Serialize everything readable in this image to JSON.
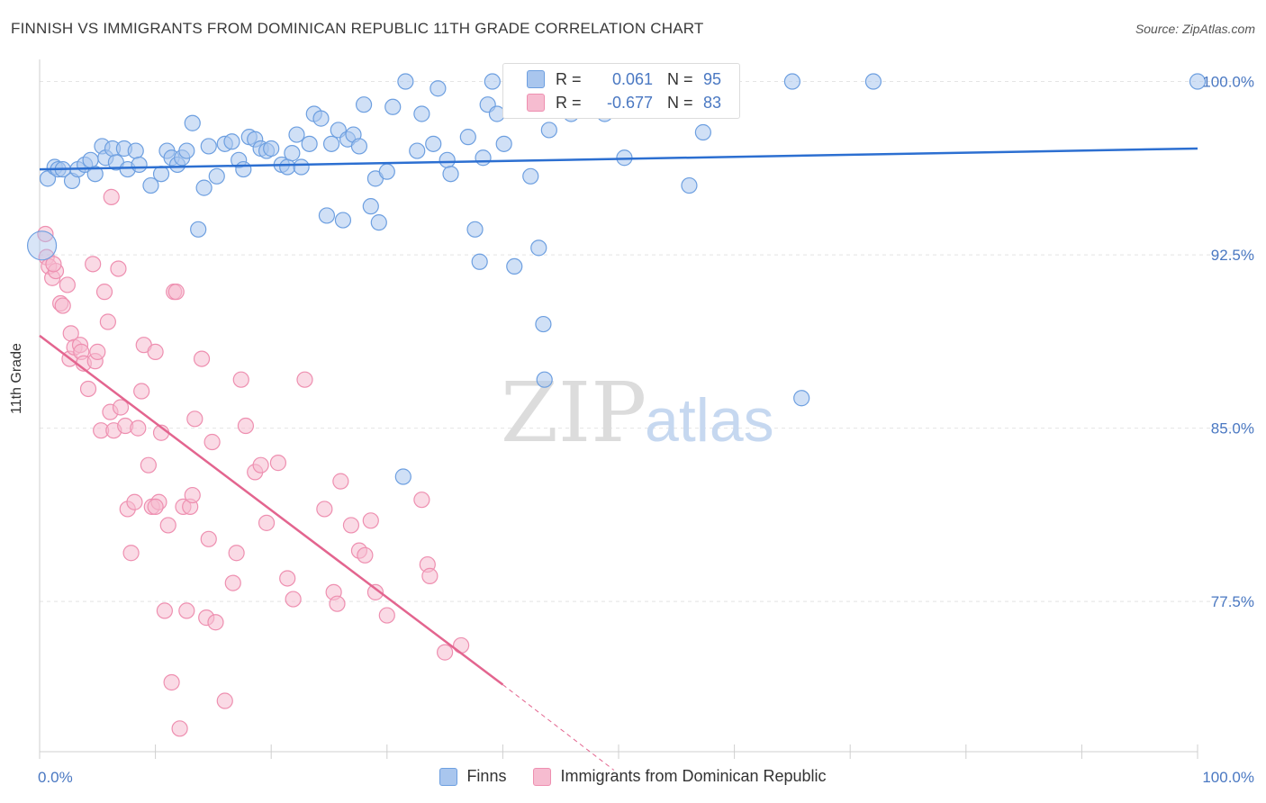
{
  "title": "FINNISH VS IMMIGRANTS FROM DOMINICAN REPUBLIC 11TH GRADE CORRELATION CHART",
  "source": "Source: ZipAtlas.com",
  "watermark": {
    "zip": "ZIP",
    "atlas": "atlas"
  },
  "legend_box": {
    "rows": [
      {
        "r_label": "R =",
        "r_value": "0.061",
        "n_label": "N =",
        "n_value": "95"
      },
      {
        "r_label": "R =",
        "r_value": "-0.677",
        "n_label": "N =",
        "n_value": "83"
      }
    ]
  },
  "legend_bottom": [
    "Finns",
    "Immigrants from Dominican Republic"
  ],
  "colors": {
    "finns_fill": "#a9c6ee",
    "finns_stroke": "#6d9fe0",
    "finns_line": "#2c6fd1",
    "dom_fill": "#f6bcd0",
    "dom_stroke": "#ee8fb0",
    "dom_line": "#e3658f",
    "tick_text": "#4a78c2",
    "grid": "#e4e4e4"
  },
  "chart_data": {
    "type": "scatter",
    "ylabel": "11th Grade",
    "xlabel": "",
    "xlim": [
      0,
      100
    ],
    "ylim": [
      71.0,
      100.8
    ],
    "x_tick_labels": [
      "0.0%",
      "100.0%"
    ],
    "y_ticks": [
      77.5,
      85.0,
      92.5,
      100.0
    ],
    "y_tick_labels": [
      "77.5%",
      "85.0%",
      "92.5%",
      "100.0%"
    ],
    "grid": true,
    "series": [
      {
        "name": "Finns",
        "points": [
          [
            0.7,
            95.8
          ],
          [
            1.3,
            96.3
          ],
          [
            1.6,
            96.2
          ],
          [
            2.0,
            96.2
          ],
          [
            2.8,
            95.7
          ],
          [
            3.3,
            96.2
          ],
          [
            3.9,
            96.4
          ],
          [
            4.4,
            96.6
          ],
          [
            4.8,
            96.0
          ],
          [
            5.4,
            97.2
          ],
          [
            5.7,
            96.7
          ],
          [
            6.3,
            97.1
          ],
          [
            6.6,
            96.5
          ],
          [
            7.3,
            97.1
          ],
          [
            7.6,
            96.2
          ],
          [
            8.3,
            97.0
          ],
          [
            8.6,
            96.4
          ],
          [
            9.6,
            95.5
          ],
          [
            10.5,
            96.0
          ],
          [
            11.0,
            97.0
          ],
          [
            11.4,
            96.7
          ],
          [
            11.9,
            96.4
          ],
          [
            12.3,
            96.7
          ],
          [
            12.7,
            97.0
          ],
          [
            13.2,
            98.2
          ],
          [
            14.2,
            95.4
          ],
          [
            14.6,
            97.2
          ],
          [
            15.3,
            95.9
          ],
          [
            16.0,
            97.3
          ],
          [
            16.6,
            97.4
          ],
          [
            17.2,
            96.6
          ],
          [
            17.6,
            96.2
          ],
          [
            18.1,
            97.6
          ],
          [
            18.6,
            97.5
          ],
          [
            19.1,
            97.1
          ],
          [
            19.6,
            97.0
          ],
          [
            20.0,
            97.1
          ],
          [
            20.9,
            96.4
          ],
          [
            21.4,
            96.3
          ],
          [
            21.8,
            96.9
          ],
          [
            22.2,
            97.7
          ],
          [
            22.6,
            96.3
          ],
          [
            23.3,
            97.3
          ],
          [
            23.7,
            98.6
          ],
          [
            24.3,
            98.4
          ],
          [
            24.8,
            94.2
          ],
          [
            25.2,
            97.3
          ],
          [
            25.8,
            97.9
          ],
          [
            26.2,
            94.0
          ],
          [
            26.6,
            97.5
          ],
          [
            27.1,
            97.7
          ],
          [
            27.6,
            97.2
          ],
          [
            28.0,
            99.0
          ],
          [
            28.6,
            94.6
          ],
          [
            29.0,
            95.8
          ],
          [
            29.3,
            93.9
          ],
          [
            30.0,
            96.1
          ],
          [
            30.5,
            98.9
          ],
          [
            31.6,
            100.0
          ],
          [
            32.6,
            97.0
          ],
          [
            33.0,
            98.6
          ],
          [
            34.0,
            97.3
          ],
          [
            34.4,
            99.7
          ],
          [
            35.2,
            96.6
          ],
          [
            35.5,
            96.0
          ],
          [
            37.0,
            97.6
          ],
          [
            37.6,
            93.6
          ],
          [
            38.0,
            92.2
          ],
          [
            38.3,
            96.7
          ],
          [
            38.7,
            99.0
          ],
          [
            39.1,
            100.0
          ],
          [
            39.5,
            98.6
          ],
          [
            40.1,
            97.3
          ],
          [
            41.0,
            92.0
          ],
          [
            42.4,
            95.9
          ],
          [
            43.1,
            92.8
          ],
          [
            43.5,
            89.5
          ],
          [
            43.6,
            87.1
          ],
          [
            44.0,
            97.9
          ],
          [
            45.9,
            98.6
          ],
          [
            47.6,
            99.6
          ],
          [
            47.9,
            100.0
          ],
          [
            50.5,
            96.7
          ],
          [
            52.4,
            99.9
          ],
          [
            54.8,
            99.4
          ],
          [
            55.4,
            100.0
          ],
          [
            56.1,
            95.5
          ],
          [
            57.3,
            97.8
          ],
          [
            65.0,
            100.0
          ],
          [
            72.0,
            100.0
          ],
          [
            65.8,
            86.3
          ],
          [
            31.4,
            82.9
          ],
          [
            13.7,
            93.6
          ],
          [
            48.8,
            98.6
          ],
          [
            100.0,
            100.0
          ]
        ],
        "trend": {
          "x": [
            0,
            100
          ],
          "y": [
            96.2,
            97.1
          ]
        }
      },
      {
        "name": "Immigrants from Dominican Republic",
        "points": [
          [
            0.5,
            93.4
          ],
          [
            0.6,
            92.4
          ],
          [
            0.8,
            92.0
          ],
          [
            1.1,
            91.5
          ],
          [
            1.4,
            91.8
          ],
          [
            1.8,
            90.4
          ],
          [
            2.0,
            90.3
          ],
          [
            2.4,
            91.2
          ],
          [
            2.7,
            89.1
          ],
          [
            2.6,
            88.0
          ],
          [
            3.0,
            88.5
          ],
          [
            3.5,
            88.6
          ],
          [
            3.6,
            88.3
          ],
          [
            3.8,
            87.8
          ],
          [
            4.2,
            86.7
          ],
          [
            4.6,
            92.1
          ],
          [
            4.8,
            87.9
          ],
          [
            5.0,
            88.3
          ],
          [
            5.3,
            84.9
          ],
          [
            5.6,
            90.9
          ],
          [
            5.9,
            89.6
          ],
          [
            6.1,
            85.7
          ],
          [
            6.4,
            84.9
          ],
          [
            6.8,
            91.9
          ],
          [
            7.0,
            85.9
          ],
          [
            7.4,
            85.1
          ],
          [
            7.6,
            81.5
          ],
          [
            7.9,
            79.6
          ],
          [
            8.2,
            81.8
          ],
          [
            8.5,
            85.0
          ],
          [
            8.8,
            86.6
          ],
          [
            9.0,
            88.6
          ],
          [
            9.4,
            83.4
          ],
          [
            9.7,
            81.6
          ],
          [
            10.0,
            88.3
          ],
          [
            10.3,
            81.8
          ],
          [
            10.5,
            84.8
          ],
          [
            10.8,
            77.1
          ],
          [
            11.1,
            80.8
          ],
          [
            11.4,
            74.0
          ],
          [
            11.6,
            90.9
          ],
          [
            11.8,
            90.9
          ],
          [
            12.1,
            72.0
          ],
          [
            12.4,
            81.6
          ],
          [
            12.7,
            77.1
          ],
          [
            13.0,
            81.6
          ],
          [
            13.2,
            82.1
          ],
          [
            13.4,
            85.4
          ],
          [
            14.0,
            88.0
          ],
          [
            14.4,
            76.8
          ],
          [
            14.6,
            80.2
          ],
          [
            14.9,
            84.4
          ],
          [
            15.2,
            76.6
          ],
          [
            16.0,
            73.2
          ],
          [
            16.7,
            78.3
          ],
          [
            17.0,
            79.6
          ],
          [
            17.4,
            87.1
          ],
          [
            17.8,
            85.1
          ],
          [
            18.6,
            83.1
          ],
          [
            19.1,
            83.4
          ],
          [
            19.6,
            80.9
          ],
          [
            20.6,
            83.5
          ],
          [
            21.4,
            78.5
          ],
          [
            21.9,
            77.6
          ],
          [
            22.9,
            87.1
          ],
          [
            24.6,
            81.5
          ],
          [
            25.4,
            77.9
          ],
          [
            25.7,
            77.4
          ],
          [
            26.0,
            82.7
          ],
          [
            26.9,
            80.8
          ],
          [
            27.6,
            79.7
          ],
          [
            28.1,
            79.5
          ],
          [
            28.6,
            81.0
          ],
          [
            29.0,
            77.9
          ],
          [
            30.0,
            76.9
          ],
          [
            33.0,
            81.9
          ],
          [
            33.5,
            79.1
          ],
          [
            33.7,
            78.6
          ],
          [
            35.0,
            75.3
          ],
          [
            36.4,
            75.6
          ],
          [
            6.2,
            95.0
          ],
          [
            1.2,
            92.1
          ],
          [
            10.0,
            81.6
          ]
        ],
        "trend": {
          "x": [
            0,
            40
          ],
          "y": [
            89.0,
            73.9
          ]
        },
        "trend_dashed": {
          "x": [
            40,
            49.6
          ],
          "y": [
            73.9,
            70.2
          ]
        }
      }
    ]
  }
}
